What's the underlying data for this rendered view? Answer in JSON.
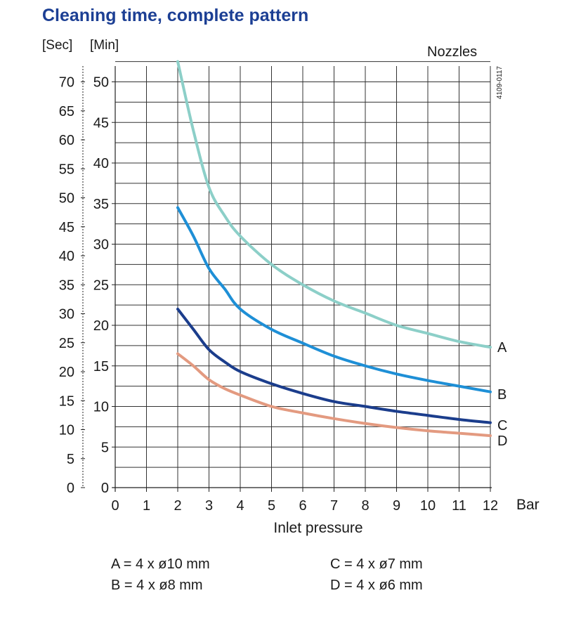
{
  "title": "Cleaning time, complete pattern",
  "units": {
    "sec": "[Sec]",
    "min": "[Min]"
  },
  "nozzles_label": "Nozzles",
  "figure_code": "4109-0117",
  "legend": {
    "A": "A = 4 x ø10 mm",
    "B": "B = 4 x ø8 mm",
    "C": "C = 4 x ø7 mm",
    "D": "D = 4 x  ø6 mm"
  },
  "chart_data": {
    "type": "line",
    "title": "Cleaning time, complete pattern",
    "xlabel": "Inlet pressure",
    "x_unit": "Bar",
    "ylabel_min": "[Min]",
    "ylabel_sec": "[Sec]",
    "xlim": [
      0,
      12
    ],
    "ylim_min": [
      0,
      52
    ],
    "x_ticks": [
      "0",
      "1",
      "2",
      "3",
      "4",
      "5",
      "6",
      "7",
      "8",
      "9",
      "10",
      "11",
      "12"
    ],
    "y_ticks_min": [
      "0",
      "5",
      "10",
      "15",
      "20",
      "25",
      "30",
      "35",
      "40",
      "45",
      "50"
    ],
    "y_ticks_sec": [
      "0",
      "5",
      "10",
      "15",
      "20",
      "25",
      "30",
      "35",
      "40",
      "45",
      "50",
      "55",
      "60",
      "65",
      "70"
    ],
    "grid": true,
    "series": [
      {
        "name": "A",
        "color": "#8ccfc8",
        "x": [
          2,
          2.5,
          3,
          3.5,
          4,
          5,
          6,
          7,
          8,
          9,
          10,
          11,
          12
        ],
        "y": [
          52.5,
          44,
          37,
          33.5,
          31,
          27.5,
          25,
          23,
          21.5,
          20,
          19,
          18,
          17.3
        ]
      },
      {
        "name": "B",
        "color": "#1e8fd6",
        "x": [
          2,
          2.5,
          3,
          3.5,
          4,
          5,
          6,
          7,
          8,
          9,
          10,
          11,
          12
        ],
        "y": [
          34.5,
          31,
          27,
          24.5,
          22,
          19.5,
          17.8,
          16.2,
          15,
          14,
          13.2,
          12.5,
          11.8
        ]
      },
      {
        "name": "C",
        "color": "#1b3d8c",
        "x": [
          2,
          2.5,
          3,
          3.5,
          4,
          5,
          6,
          7,
          8,
          9,
          10,
          11,
          12
        ],
        "y": [
          22,
          19.5,
          17,
          15.5,
          14.3,
          12.8,
          11.6,
          10.6,
          10,
          9.4,
          8.9,
          8.4,
          8
        ]
      },
      {
        "name": "D",
        "color": "#e39a80",
        "x": [
          2,
          2.5,
          3,
          3.5,
          4,
          5,
          6,
          7,
          8,
          9,
          10,
          11,
          12
        ],
        "y": [
          16.5,
          15,
          13.3,
          12.2,
          11.4,
          10,
          9.2,
          8.5,
          7.9,
          7.4,
          7,
          6.7,
          6.4
        ]
      }
    ]
  }
}
